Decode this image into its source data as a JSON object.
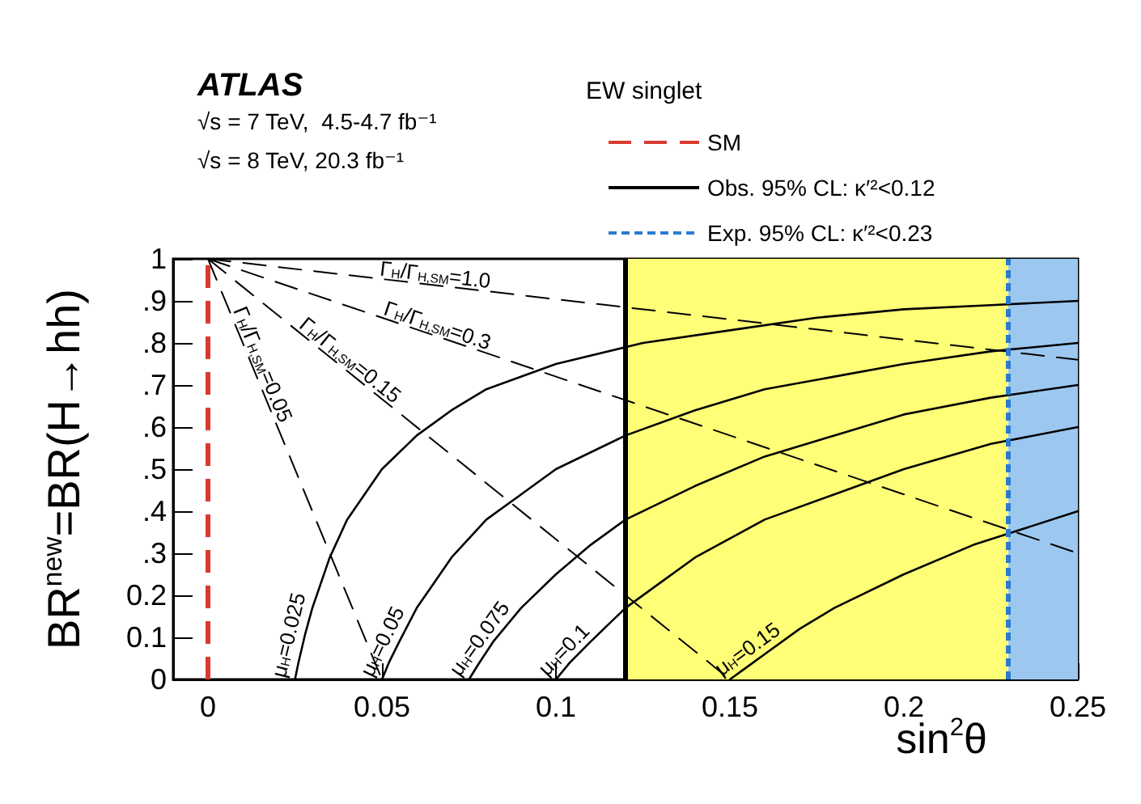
{
  "chart_data": {
    "type": "line",
    "xlabel": "sin$^{2}$θ",
    "ylabel": "BR$^{new}$=BR(H→hh)",
    "legend_title": "EW singlet",
    "annotations": [
      "ATLAS",
      "√s = 7 TeV,  4.5-4.7 fb⁻¹",
      "√s = 8 TeV, 20.3 fb⁻¹"
    ],
    "xlim": [
      -0.01,
      0.25
    ],
    "xticks": [
      0,
      0.05,
      0.1,
      0.15,
      0.2,
      0.25
    ],
    "ylim": [
      0,
      1
    ],
    "yticks": [
      0,
      0.1,
      0.2,
      {
        "value": 0.3,
        "label": ".3"
      },
      {
        "value": 0.4,
        "label": ".4"
      },
      {
        "value": 0.5,
        "label": ".5"
      },
      {
        "value": 0.6,
        "label": ".6"
      },
      {
        "value": 0.7,
        "label": ".7"
      },
      {
        "value": 0.8,
        "label": ".8"
      },
      {
        "value": 0.9,
        "label": ".9"
      },
      1
    ],
    "grid": false,
    "legend": "top",
    "marker": "none",
    "series": [
      {
        "name": "Γ$_{H}$/Γ$_{H,SM}$=1.0",
        "color": "#000000",
        "line_style": "dashed",
        "x": [
          0,
          0.25
        ],
        "values": [
          1,
          0.76
        ]
      },
      {
        "name": "Γ$_{H}$/Γ$_{H,SM}$=0.3",
        "color": "#000000",
        "line_style": "dashed",
        "x": [
          0,
          0.25
        ],
        "values": [
          1,
          0.3
        ]
      },
      {
        "name": "Γ$_{H}$/Γ$_{H,SM}$=0.15",
        "color": "#000000",
        "line_style": "dashed",
        "x": [
          0,
          0.15
        ],
        "values": [
          1,
          0
        ]
      },
      {
        "name": "Γ$_{H}$/Γ$_{H,SM}$=0.05",
        "color": "#000000",
        "line_style": "dashed",
        "x": [
          0,
          0.05
        ],
        "values": [
          1,
          0
        ]
      },
      {
        "name": "μ$_{H}$=0.025",
        "color": "#000000",
        "line_style": "solid",
        "x": [
          0.025,
          0.026,
          0.028,
          0.03,
          0.035,
          0.04,
          0.045,
          0.05,
          0.06,
          0.07,
          0.08,
          0.1,
          0.125,
          0.15,
          0.175,
          0.2,
          0.225,
          0.25
        ],
        "values": [
          0,
          0.04,
          0.11,
          0.17,
          0.29,
          0.38,
          0.44,
          0.5,
          0.58,
          0.64,
          0.69,
          0.75,
          0.8,
          0.83,
          0.86,
          0.88,
          0.89,
          0.9
        ]
      },
      {
        "name": "μ$_{H}$=0.05",
        "color": "#000000",
        "line_style": "solid",
        "x": [
          0.05,
          0.052,
          0.055,
          0.06,
          0.065,
          0.07,
          0.08,
          0.09,
          0.1,
          0.12,
          0.14,
          0.16,
          0.18,
          0.2,
          0.225,
          0.25
        ],
        "values": [
          0,
          0.04,
          0.09,
          0.17,
          0.23,
          0.29,
          0.38,
          0.44,
          0.5,
          0.58,
          0.64,
          0.69,
          0.72,
          0.75,
          0.78,
          0.8
        ]
      },
      {
        "name": "μ$_{H}$=0.075",
        "color": "#000000",
        "line_style": "solid",
        "x": [
          0.075,
          0.078,
          0.082,
          0.09,
          0.1,
          0.11,
          0.12,
          0.14,
          0.16,
          0.18,
          0.2,
          0.225,
          0.25
        ],
        "values": [
          0,
          0.04,
          0.09,
          0.17,
          0.25,
          0.32,
          0.38,
          0.46,
          0.53,
          0.58,
          0.63,
          0.67,
          0.7
        ]
      },
      {
        "name": "μ$_{H}$=0.1",
        "color": "#000000",
        "line_style": "solid",
        "x": [
          0.1,
          0.104,
          0.11,
          0.12,
          0.13,
          0.14,
          0.16,
          0.18,
          0.2,
          0.225,
          0.25
        ],
        "values": [
          0,
          0.04,
          0.09,
          0.17,
          0.23,
          0.29,
          0.38,
          0.44,
          0.5,
          0.56,
          0.6
        ]
      },
      {
        "name": "μ$_{H}$=0.15",
        "color": "#000000",
        "line_style": "solid",
        "x": [
          0.15,
          0.155,
          0.16,
          0.17,
          0.18,
          0.2,
          0.22,
          0.25
        ],
        "values": [
          0,
          0.03,
          0.06,
          0.12,
          0.17,
          0.25,
          0.32,
          0.4
        ]
      }
    ],
    "ref_lines": [
      {
        "axis": "x",
        "value": 0,
        "label": "SM",
        "color": "#d93a30",
        "line_style": "dashed"
      },
      {
        "axis": "x",
        "value": 0.12,
        "label": "Obs. 95% CL: κ′²<0.12",
        "color": "#000000",
        "line_style": "solid"
      },
      {
        "axis": "x",
        "value": 0.23,
        "label": "Exp. 95% CL: κ′²<0.23",
        "color": "#2a7bd0",
        "line_style": "dotted"
      }
    ],
    "bands": [
      {
        "axis": "x",
        "from": 0.12,
        "to": 0.25,
        "color": "#ffff77"
      },
      {
        "axis": "x",
        "from": 0.23,
        "to": 0.25,
        "color": "#9cc8f0"
      }
    ]
  }
}
